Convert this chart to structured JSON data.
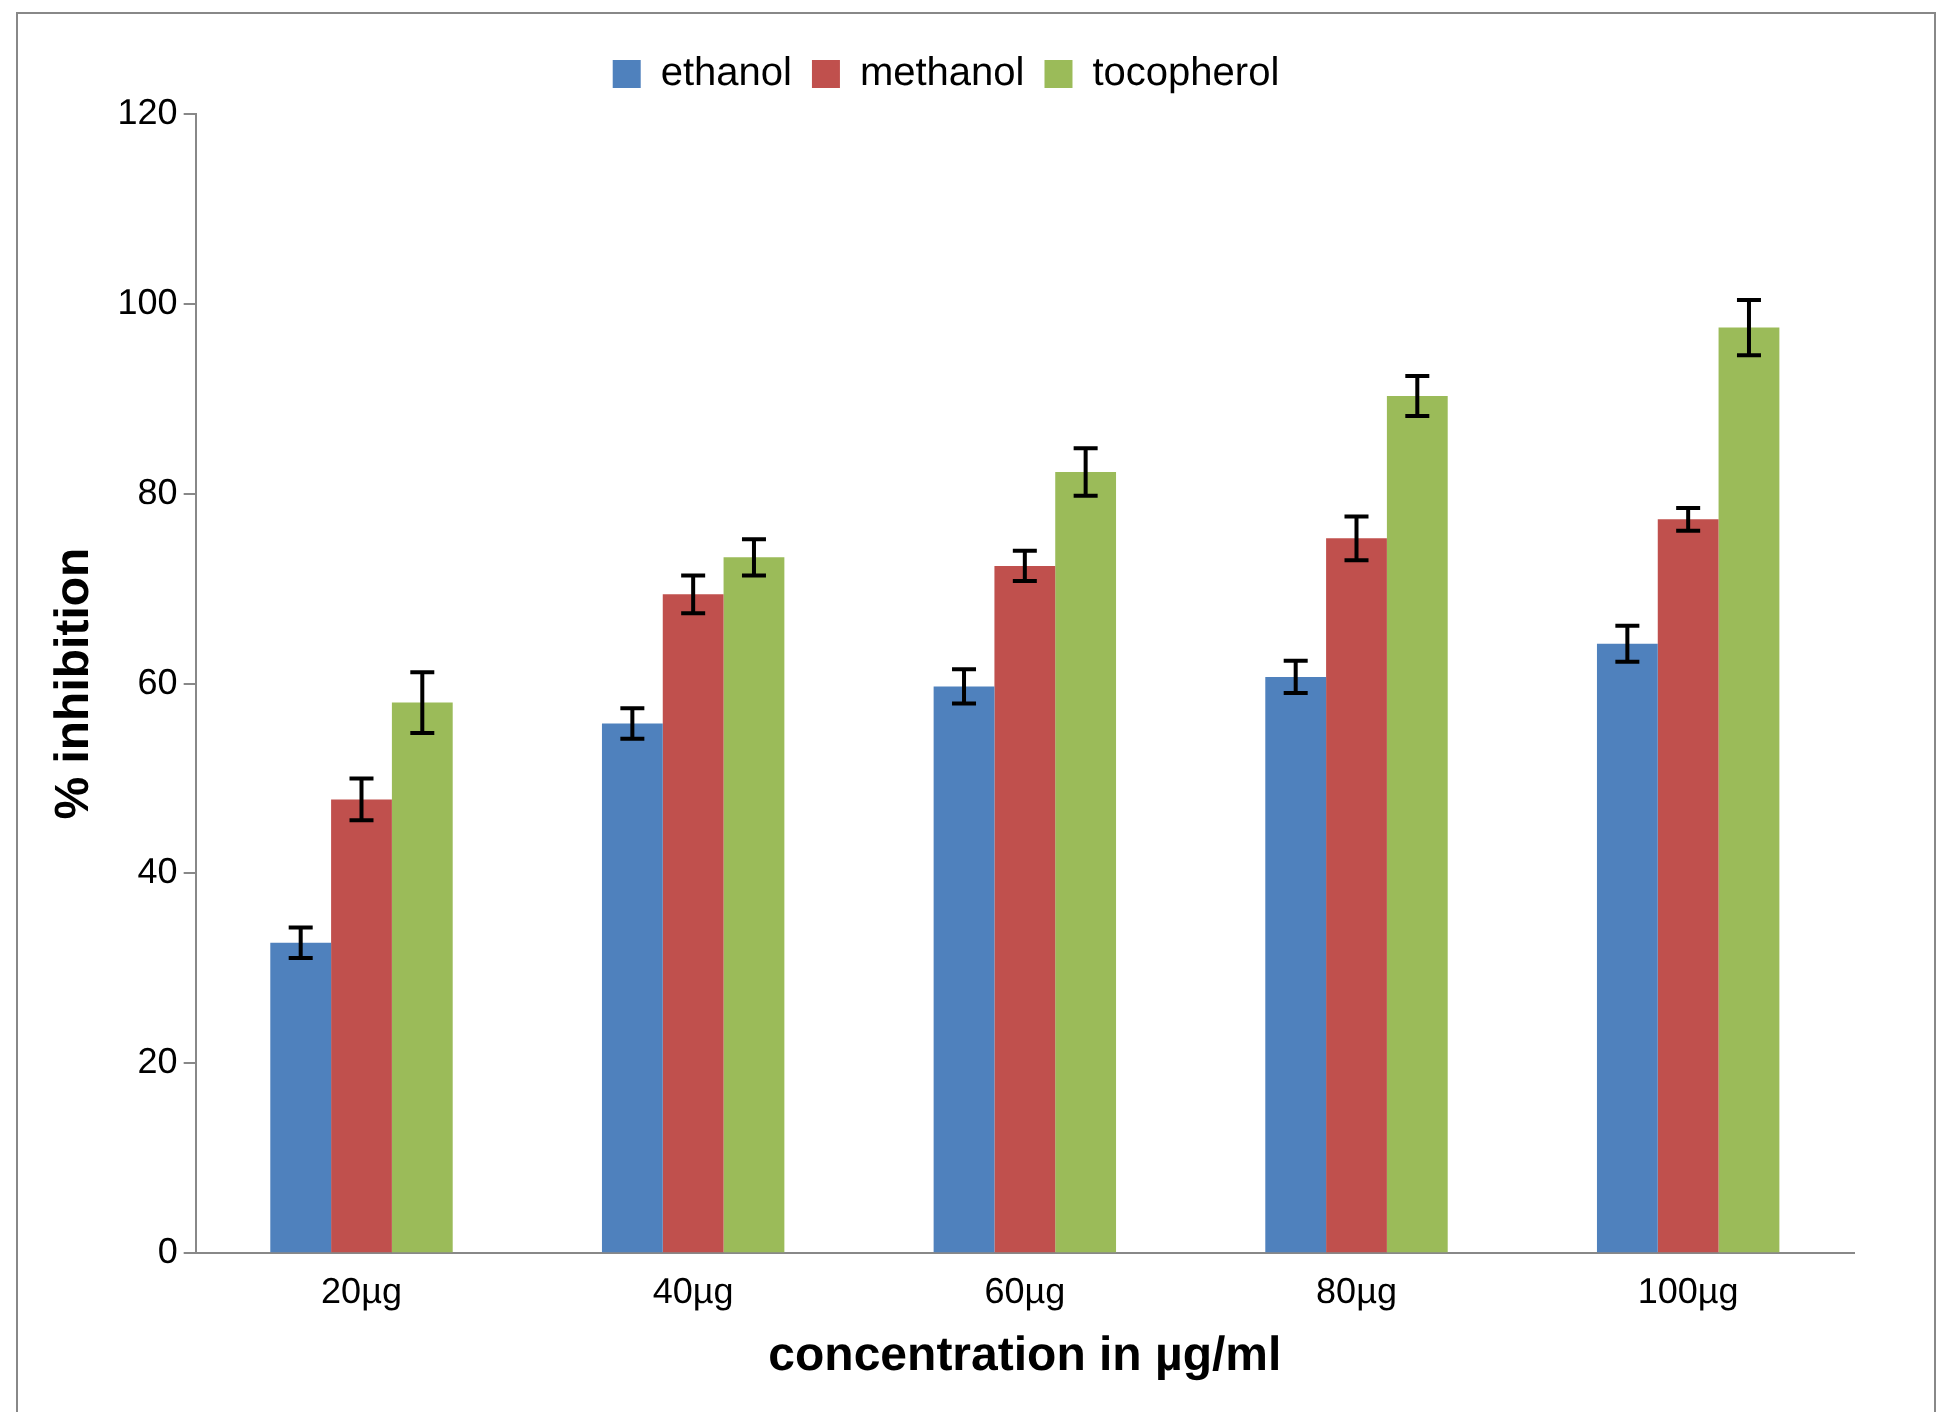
{
  "chart_data": {
    "type": "bar",
    "xlabel": "concentration in µg/ml",
    "ylabel": "% inhibition",
    "categories": [
      "20µg",
      "40µg",
      "60µg",
      "80µg",
      "100µg"
    ],
    "series": [
      {
        "name": "ethanol",
        "color": "#4f81bd",
        "values": [
          32.7,
          55.8,
          59.7,
          60.7,
          64.2
        ],
        "errors": [
          1.6,
          1.6,
          1.8,
          1.7,
          1.9
        ]
      },
      {
        "name": "methanol",
        "color": "#c0504d",
        "values": [
          47.8,
          69.4,
          72.4,
          75.3,
          77.3
        ],
        "errors": [
          2.2,
          2.0,
          1.6,
          2.3,
          1.2
        ]
      },
      {
        "name": "tocopherol",
        "color": "#9bbb59",
        "values": [
          58.0,
          73.3,
          82.3,
          90.3,
          97.5
        ],
        "errors": [
          3.2,
          1.9,
          2.5,
          2.1,
          2.9
        ]
      }
    ],
    "ylim": [
      0,
      120
    ],
    "yticks": [
      0,
      20,
      40,
      60,
      80,
      100,
      120
    ],
    "grid": false,
    "legend": "top"
  }
}
